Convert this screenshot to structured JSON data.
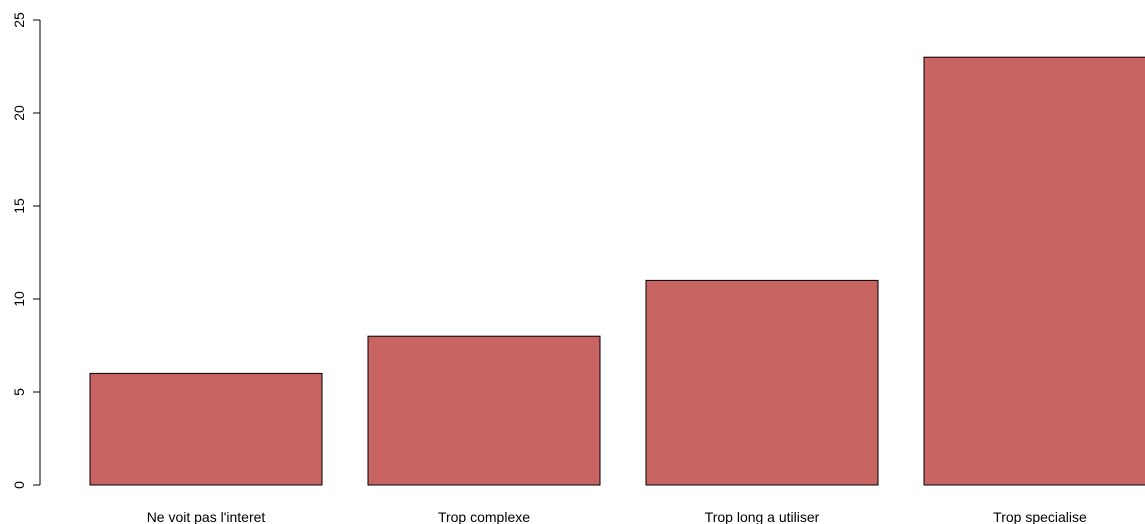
{
  "chart_data": {
    "type": "bar",
    "categories": [
      "Ne voit pas l'interet",
      "Trop complexe",
      "Trop long a utiliser",
      "Trop specialise"
    ],
    "values": [
      6,
      8,
      11,
      23
    ],
    "title": "",
    "xlabel": "",
    "ylabel": "",
    "ylim": [
      0,
      25
    ],
    "yticks": [
      "0",
      "5",
      "10",
      "15",
      "20",
      "25"
    ],
    "grid": false,
    "legend": "none",
    "bar_color": "#c86562",
    "bar_border_color": "#000000"
  }
}
